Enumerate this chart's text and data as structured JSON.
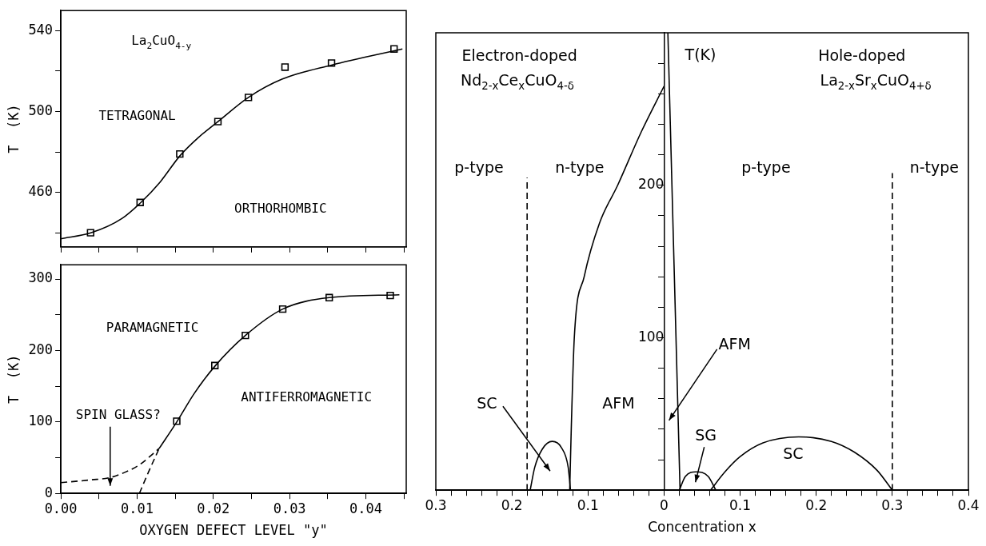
{
  "chart_data": [
    {
      "type": "scatter",
      "ylabel": "T  (K)",
      "xlim": [
        0,
        0.0453
      ],
      "ylim": [
        433,
        550
      ],
      "tick_labels": "y",
      "grid": false,
      "xticks": [
        0,
        0.005,
        0.01,
        0.015,
        0.02,
        0.025,
        0.03,
        0.035,
        0.04,
        0.045
      ],
      "yticks": [
        {
          "value": 440,
          "label": null
        },
        460,
        {
          "value": 480,
          "label": null
        },
        500,
        {
          "value": 520,
          "label": null
        },
        540
      ],
      "annotations": [
        "La$_{2}$CuO$_{4-y}$",
        "TETRAGONAL",
        "ORTHORHOMBIC"
      ],
      "series": [
        {
          "marker": "square",
          "color": "#000000",
          "x": [
            0.0039,
            0.0104,
            0.0156,
            0.0206,
            0.0246,
            0.0294,
            0.0355,
            0.0437
          ],
          "values": [
            440,
            455,
            479,
            495,
            507,
            522,
            524,
            531
          ]
        },
        {
          "type": "line",
          "marker": "none",
          "line_style": "solid",
          "color": "#000000",
          "x": [
            0,
            0.004,
            0.008,
            0.0105,
            0.013,
            0.0156,
            0.018,
            0.0206,
            0.0246,
            0.029,
            0.0355,
            0.0448
          ],
          "values": [
            437,
            440,
            447,
            455,
            465,
            478,
            487,
            495,
            507,
            516,
            523,
            531
          ]
        }
      ]
    },
    {
      "type": "scatter",
      "ylabel": "T  (K)",
      "xlabel": "OXYGEN DEFECT LEVEL \"y\"",
      "xlim": [
        0,
        0.0453
      ],
      "ylim": [
        0,
        320
      ],
      "grid": false,
      "xticks": [
        {
          "value": 0,
          "label": "0.00"
        },
        {
          "value": 0.005,
          "label": null
        },
        {
          "value": 0.01,
          "label": "0.01"
        },
        {
          "value": 0.015,
          "label": null
        },
        {
          "value": 0.02,
          "label": "0.02"
        },
        {
          "value": 0.025,
          "label": null
        },
        {
          "value": 0.03,
          "label": "0.03"
        },
        {
          "value": 0.035,
          "label": null
        },
        {
          "value": 0.04,
          "label": "0.04"
        },
        {
          "value": 0.045,
          "label": null
        }
      ],
      "yticks": [
        0,
        {
          "value": 50,
          "label": null
        },
        100,
        {
          "value": 150,
          "label": null
        },
        200,
        {
          "value": 250,
          "label": null
        },
        300
      ],
      "annotations": [
        "PARAMAGNETIC",
        "ANTIFERROMAGNETIC",
        "SPIN GLASS?"
      ],
      "series": [
        {
          "marker": "square",
          "color": "#000000",
          "x": [
            0.0152,
            0.0202,
            0.0242,
            0.0291,
            0.0352,
            0.0432
          ],
          "values": [
            101,
            179,
            221,
            258,
            274,
            277
          ]
        },
        {
          "type": "line",
          "marker": "none",
          "line_style": "solid",
          "color": "#000000",
          "x": [
            0.0129,
            0.0152,
            0.0175,
            0.0202,
            0.0242,
            0.0291,
            0.0352,
            0.0444
          ],
          "values": [
            63,
            100,
            140,
            178,
            221,
            258,
            274,
            278
          ]
        },
        {
          "type": "line",
          "marker": "none",
          "line_style": "dashed",
          "color": "#000000",
          "x": [
            0.0103,
            0.0115,
            0.0129
          ],
          "values": [
            0,
            30,
            63
          ]
        },
        {
          "type": "line",
          "marker": "none",
          "line_style": "dashed",
          "color": "#000000",
          "x": [
            0,
            0.004,
            0.0064,
            0.0085,
            0.0103,
            0.0129
          ],
          "values": [
            15,
            19,
            22,
            30,
            40,
            63
          ]
        }
      ]
    },
    {
      "type": "line",
      "xlabel": "Concentration x",
      "xlim": [
        -0.3,
        0.4
      ],
      "ylim": [
        0,
        300
      ],
      "grid": false,
      "xticks": [
        {
          "value": -0.3,
          "label": "0.3"
        },
        {
          "value": -0.28,
          "label": null
        },
        {
          "value": -0.26,
          "label": null
        },
        {
          "value": -0.24,
          "label": null
        },
        {
          "value": -0.22,
          "label": null
        },
        {
          "value": -0.2,
          "label": "0.2"
        },
        {
          "value": -0.18,
          "label": null
        },
        {
          "value": -0.16,
          "label": null
        },
        {
          "value": -0.14,
          "label": null
        },
        {
          "value": -0.12,
          "label": null
        },
        {
          "value": -0.1,
          "label": "0.1"
        },
        {
          "value": -0.08,
          "label": null
        },
        {
          "value": -0.06,
          "label": null
        },
        {
          "value": -0.04,
          "label": null
        },
        {
          "value": -0.02,
          "label": null
        },
        0,
        {
          "value": 0.02,
          "label": null
        },
        {
          "value": 0.04,
          "label": null
        },
        {
          "value": 0.06,
          "label": null
        },
        {
          "value": 0.08,
          "label": null
        },
        0.1,
        {
          "value": 0.12,
          "label": null
        },
        {
          "value": 0.14,
          "label": null
        },
        {
          "value": 0.16,
          "label": null
        },
        {
          "value": 0.18,
          "label": null
        },
        0.2,
        {
          "value": 0.22,
          "label": null
        },
        {
          "value": 0.24,
          "label": null
        },
        {
          "value": 0.26,
          "label": null
        },
        {
          "value": 0.28,
          "label": null
        },
        0.3,
        {
          "value": 0.32,
          "label": null
        },
        {
          "value": 0.34,
          "label": null
        },
        {
          "value": 0.36,
          "label": null
        },
        {
          "value": 0.38,
          "label": null
        },
        0.4
      ],
      "yticks": [
        {
          "value": 0,
          "label": null
        },
        {
          "value": 20,
          "label": null
        },
        {
          "value": 40,
          "label": null
        },
        {
          "value": 60,
          "label": null
        },
        {
          "value": 80,
          "label": null
        },
        100,
        {
          "value": 120,
          "label": null
        },
        {
          "value": 140,
          "label": null
        },
        {
          "value": 160,
          "label": null
        },
        {
          "value": 180,
          "label": null
        },
        200,
        {
          "value": 220,
          "label": null
        },
        {
          "value": 240,
          "label": null
        },
        {
          "value": 260,
          "label": null
        },
        {
          "value": 280,
          "label": null
        }
      ],
      "annotations": [
        "Electron-doped",
        "Nd$_{2-x}$Ce$_{x}$CuO$_{4-δ}$",
        "p-type",
        "n-type",
        "SC",
        "AFM",
        "T(K)",
        "Hole-doped",
        "La$_{2-x}$Sr$_{x}$CuO$_{4+δ}$",
        "p-type",
        "n-type",
        "AFM",
        "SG",
        "SC"
      ],
      "series": [
        {
          "line_style": "solid",
          "color": "#000000",
          "x": [
            -0.124,
            -0.122,
            -0.118,
            -0.105,
            -0.085,
            -0.061,
            -0.03,
            0
          ],
          "values": [
            0,
            40,
            100,
            140,
            175,
            200,
            235,
            265
          ]
        },
        {
          "line_style": "solid",
          "color": "#000000",
          "x": [
            -0.176,
            -0.17,
            -0.16,
            -0.147,
            -0.135,
            -0.126,
            -0.123
          ],
          "values": [
            0,
            15,
            27,
            32,
            28,
            15,
            0
          ]
        },
        {
          "line_style": "solid",
          "color": "#000000",
          "x": [
            0.005,
            0.021
          ],
          "values": [
            300,
            0
          ]
        },
        {
          "line_style": "solid",
          "color": "#000000",
          "x": [
            0.02,
            0.028,
            0.042,
            0.058,
            0.068
          ],
          "values": [
            0,
            9,
            12,
            9,
            0
          ]
        },
        {
          "line_style": "solid",
          "color": "#000000",
          "x": [
            0.061,
            0.08,
            0.1,
            0.13,
            0.177,
            0.22,
            0.25,
            0.28,
            0.3
          ],
          "values": [
            0,
            12,
            22,
            31,
            35,
            32,
            25,
            13,
            0
          ]
        },
        {
          "line_style": "dashed",
          "color": "#000000",
          "x": [
            -0.18,
            -0.18
          ],
          "values": [
            0,
            205
          ]
        },
        {
          "line_style": "dashed",
          "color": "#000000",
          "x": [
            0.3,
            0.3
          ],
          "values": [
            0,
            208
          ]
        }
      ]
    }
  ]
}
